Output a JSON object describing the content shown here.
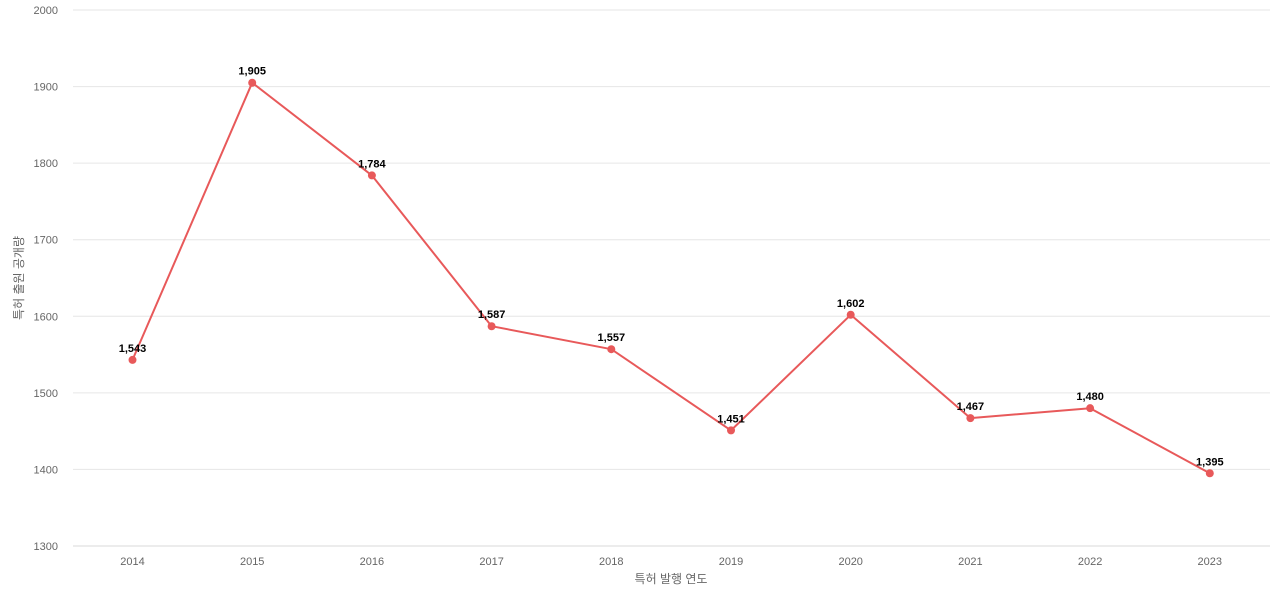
{
  "chart_data": {
    "type": "line",
    "categories": [
      "2014",
      "2015",
      "2016",
      "2017",
      "2018",
      "2019",
      "2020",
      "2021",
      "2022",
      "2023"
    ],
    "series": [
      {
        "values": [
          1543,
          1905,
          1784,
          1587,
          1557,
          1451,
          1602,
          1467,
          1480,
          1395
        ],
        "data_labels": [
          "1,543",
          "1,905",
          "1,784",
          "1,587",
          "1,557",
          "1,451",
          "1,602",
          "1,467",
          "1,480",
          "1,395"
        ],
        "color": "#e8595a"
      }
    ],
    "title": "",
    "xlabel": "특허 발행 연도",
    "ylabel": "특허 출원 공개량",
    "ylim": [
      1300,
      2000
    ],
    "yticks": [
      "1300",
      "1400",
      "1500",
      "1600",
      "1700",
      "1800",
      "1900",
      "2000"
    ],
    "grid": true,
    "legend": "none"
  }
}
